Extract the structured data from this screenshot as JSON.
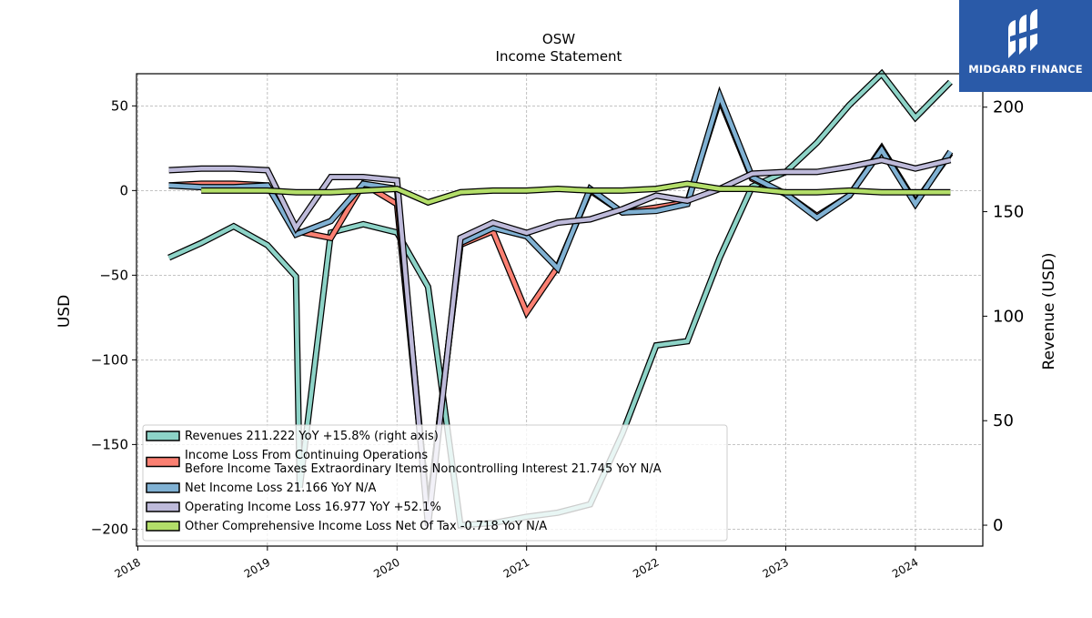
{
  "chart_data": {
    "type": "line",
    "title": "OSW",
    "subtitle": "Income Statement",
    "ylabel_left": "USD",
    "ylabel_right": "Revenue (USD)",
    "ylim_left": [
      -210,
      69
    ],
    "ylim_right": [
      -10,
      216
    ],
    "yticks_left": [
      50,
      0,
      -50,
      -100,
      -150,
      -200
    ],
    "ytick_labels_left": [
      "50",
      "0",
      "−50",
      "−100",
      "−150",
      "−200"
    ],
    "yticks_right": [
      200,
      150,
      100,
      50,
      0
    ],
    "ytick_labels_right": [
      "200",
      "150",
      "100",
      "50",
      "0"
    ],
    "xlim": [
      2017.99,
      2024.52
    ],
    "xticks": [
      2018,
      2019,
      2020,
      2021,
      2022,
      2023,
      2024
    ],
    "xtick_labels": [
      "2018",
      "2019",
      "2020",
      "2021",
      "2022",
      "2023",
      "2024"
    ],
    "grid": true,
    "legend_position": "lower-left",
    "series": [
      {
        "name": "Revenues  211.222 YoY +15.8% (right axis)",
        "axis": "right",
        "color": "#8dd3c7",
        "x": [
          2018.24,
          2018.49,
          2018.74,
          2019.0,
          2019.22,
          2019.25,
          2019.49,
          2019.74,
          2020.0,
          2020.24,
          2020.49,
          2020.74,
          2021.0,
          2021.24,
          2021.49,
          2021.74,
          2022.0,
          2022.24,
          2022.49,
          2022.74,
          2023.0,
          2023.24,
          2023.49,
          2023.74,
          2024.0,
          2024.27
        ],
        "values": [
          128,
          135,
          143,
          134,
          119,
          18,
          140,
          144,
          140,
          114,
          0,
          1,
          4,
          6,
          10,
          44,
          86,
          88,
          128,
          162,
          169,
          183,
          201,
          216,
          195,
          212
        ]
      },
      {
        "name": "Income Loss From Continuing Operations\nBefore Income Taxes Extraordinary Items Noncontrolling Interest  21.745 YoY N/A",
        "axis": "left",
        "color": "#fb8072",
        "x": [
          2018.24,
          2018.49,
          2018.74,
          2019.0,
          2019.22,
          2019.49,
          2019.74,
          2020.0,
          2020.24,
          2020.49,
          2020.74,
          2021.0,
          2021.24,
          2021.49,
          2021.74,
          2022.0,
          2022.24,
          2022.49,
          2022.74,
          2023.0,
          2023.24,
          2023.49,
          2023.74,
          2024.0,
          2024.27
        ],
        "values": [
          3,
          4,
          4,
          3,
          -24,
          -28,
          4,
          -8,
          -192,
          -32,
          -24,
          -72,
          -45,
          0,
          -13,
          -10,
          -7,
          54,
          7,
          -2,
          -15,
          -3,
          25,
          -7,
          22
        ]
      },
      {
        "name": "Net Income Loss  21.166 YoY N/A",
        "axis": "left",
        "color": "#80b1d3",
        "x": [
          2018.24,
          2018.49,
          2018.74,
          2019.0,
          2019.22,
          2019.49,
          2019.74,
          2020.0,
          2020.24,
          2020.49,
          2020.74,
          2021.0,
          2021.24,
          2021.49,
          2021.74,
          2022.0,
          2022.24,
          2022.49,
          2022.74,
          2023.0,
          2023.24,
          2023.49,
          2023.74,
          2024.0,
          2024.27
        ],
        "values": [
          3,
          2,
          2,
          3,
          -26,
          -18,
          4,
          1,
          -193,
          -31,
          -22,
          -27,
          -46,
          1,
          -13,
          -12,
          -8,
          56,
          8,
          -2,
          -16,
          -3,
          24,
          -8,
          23
        ]
      },
      {
        "name": "Operating Income Loss  16.977 YoY +52.1%",
        "axis": "left",
        "color": "#bebada",
        "x": [
          2018.24,
          2018.49,
          2018.74,
          2019.0,
          2019.22,
          2019.49,
          2019.74,
          2020.0,
          2020.24,
          2020.49,
          2020.74,
          2021.0,
          2021.24,
          2021.49,
          2021.74,
          2022.0,
          2022.24,
          2022.49,
          2022.74,
          2023.0,
          2023.24,
          2023.49,
          2023.74,
          2024.0,
          2024.27
        ],
        "values": [
          12,
          13,
          13,
          12,
          -22,
          8,
          8,
          6,
          -198,
          -28,
          -19,
          -25,
          -19,
          -17,
          -11,
          -3,
          -6,
          1,
          10,
          11,
          11,
          14,
          18,
          13,
          18
        ]
      },
      {
        "name": "Other Comprehensive Income Loss Net Of Tax  -0.718 YoY N/A",
        "axis": "left",
        "color": "#b3de69",
        "x": [
          2018.49,
          2018.74,
          2019.0,
          2019.22,
          2019.49,
          2019.74,
          2020.0,
          2020.24,
          2020.49,
          2020.74,
          2021.0,
          2021.24,
          2021.49,
          2021.74,
          2022.0,
          2022.24,
          2022.49,
          2022.74,
          2023.0,
          2023.24,
          2023.49,
          2023.74,
          2024.0,
          2024.27
        ],
        "values": [
          0,
          0,
          0,
          -1,
          -1,
          0,
          1,
          -7,
          -1,
          0,
          0,
          1,
          0,
          0,
          1,
          4,
          1,
          1,
          -1,
          -1,
          0,
          -1,
          -1,
          -1
        ]
      }
    ]
  },
  "logo": {
    "text": "MIDGARD FINANCE",
    "icon": "midgard-logo-icon"
  }
}
